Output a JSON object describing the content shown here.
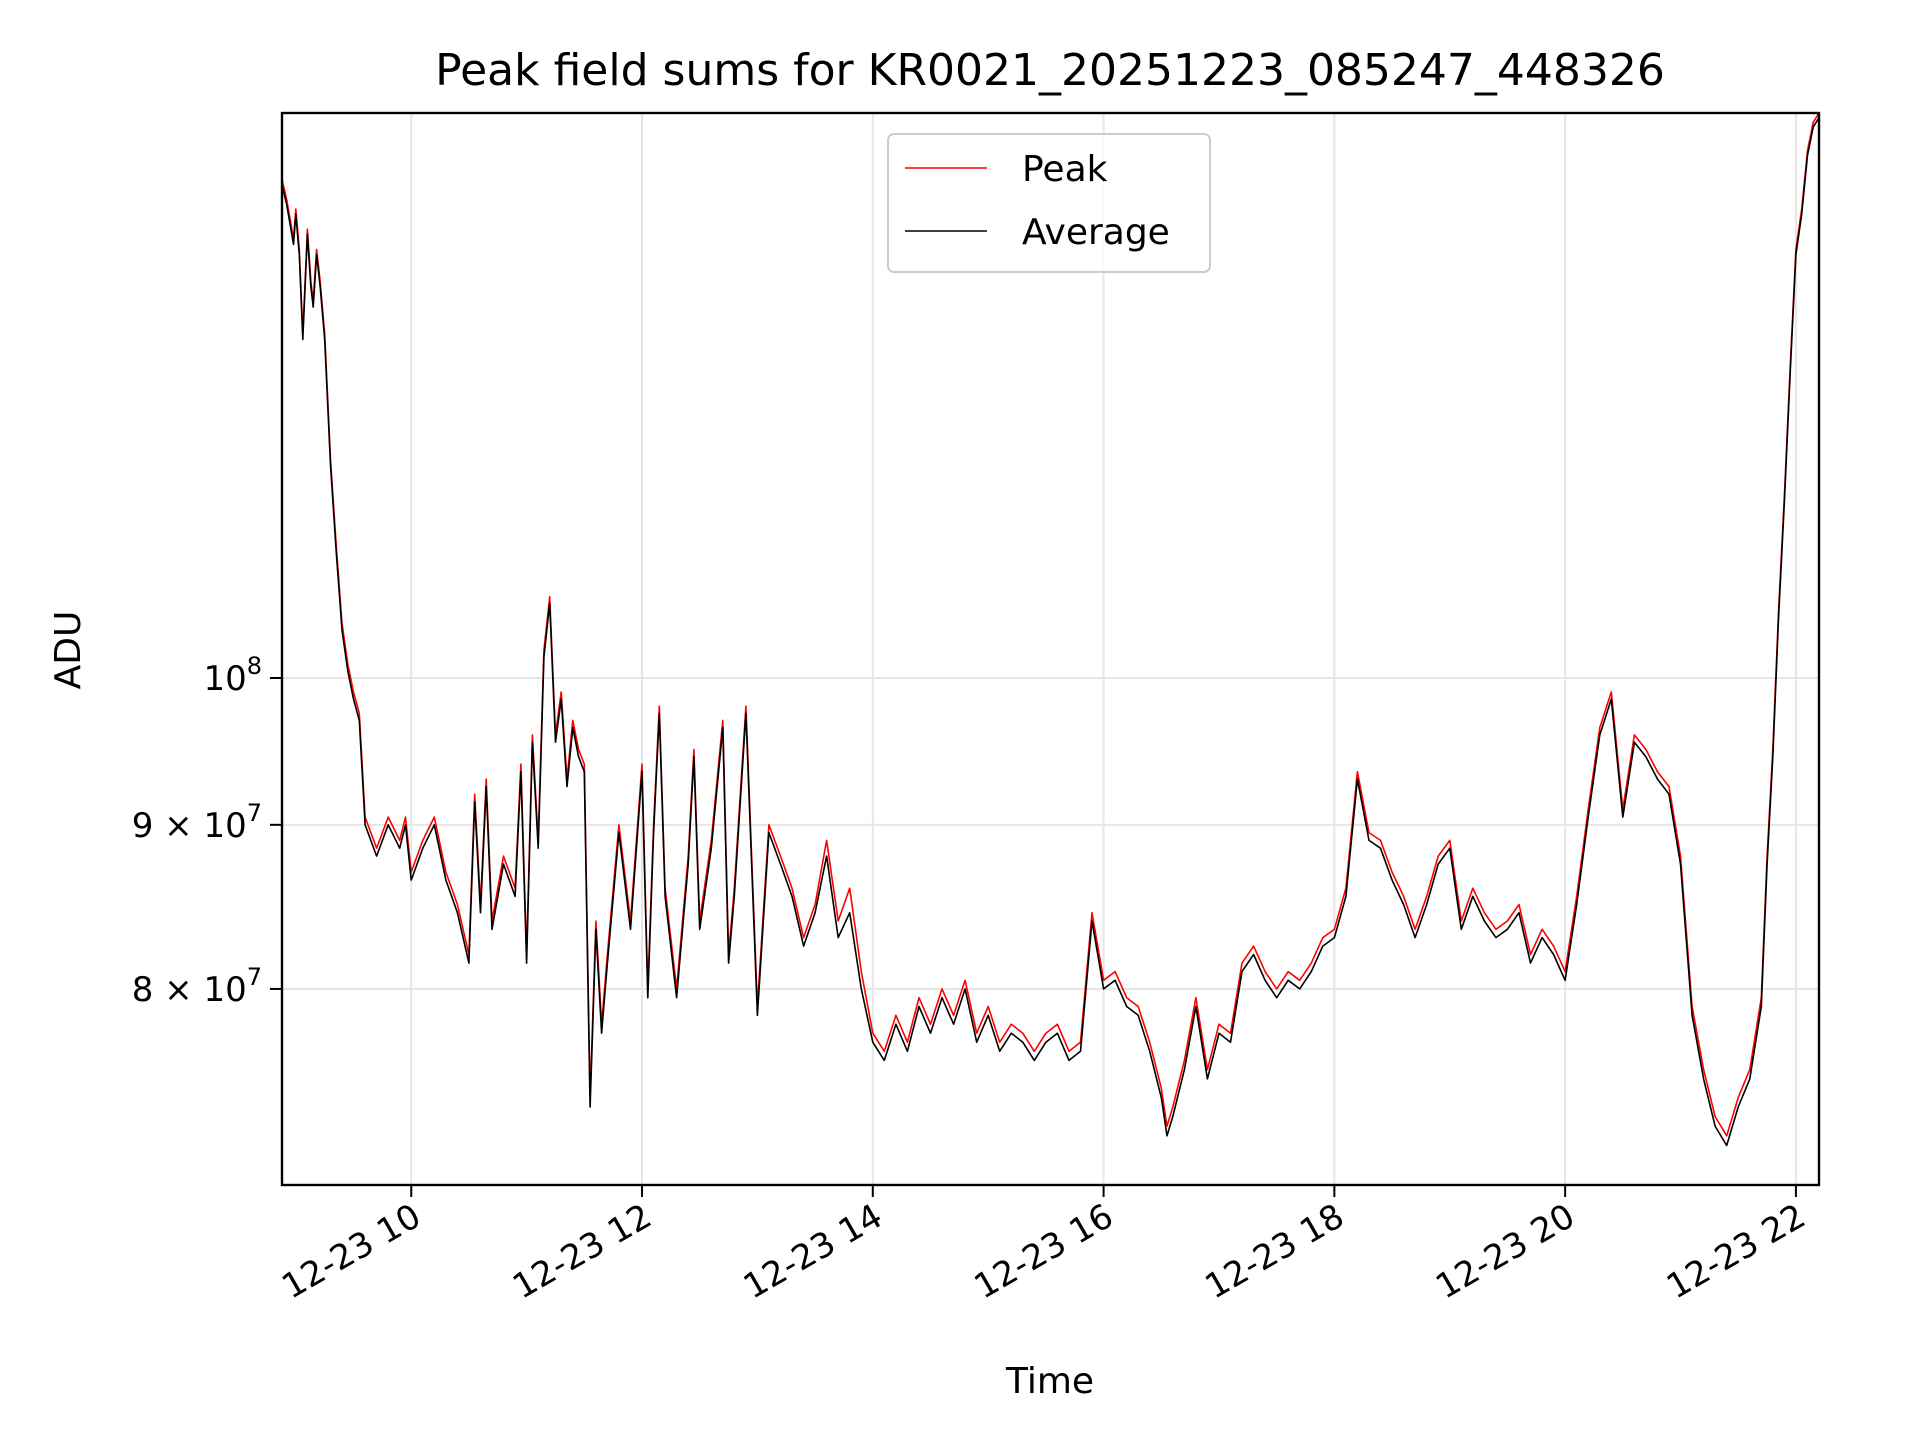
{
  "chart_data": {
    "type": "line",
    "title": "Peak field sums for KR0021_20251223_085247_448326",
    "xlabel": "Time",
    "ylabel": "ADU",
    "yscale": "log",
    "grid": true,
    "legend_position": "top-center",
    "xlim": [
      8.88,
      22.2
    ],
    "ylim": [
      69500000,
      150000000
    ],
    "x_units": "hours since 2025-12-23 00:00",
    "x_ticks": [
      {
        "value": 10,
        "label": "12-23 10"
      },
      {
        "value": 12,
        "label": "12-23 12"
      },
      {
        "value": 14,
        "label": "12-23 14"
      },
      {
        "value": 16,
        "label": "12-23 16"
      },
      {
        "value": 18,
        "label": "12-23 18"
      },
      {
        "value": 20,
        "label": "12-23 20"
      },
      {
        "value": 22,
        "label": "12-23 22"
      }
    ],
    "y_ticks": [
      {
        "value": 80000000,
        "label": "8 × 10",
        "exp": "7"
      },
      {
        "value": 90000000,
        "label": "9 × 10",
        "exp": "7"
      },
      {
        "value": 100000000,
        "label": "10",
        "exp": "8"
      }
    ],
    "series": [
      {
        "name": "Peak",
        "color": "#ff0000",
        "x": [
          8.88,
          8.92,
          8.95,
          8.98,
          9.0,
          9.03,
          9.06,
          9.1,
          9.13,
          9.15,
          9.18,
          9.21,
          9.25,
          9.3,
          9.35,
          9.4,
          9.45,
          9.5,
          9.55,
          9.6,
          9.7,
          9.8,
          9.9,
          9.95,
          10.0,
          10.1,
          10.2,
          10.3,
          10.4,
          10.5,
          10.55,
          10.6,
          10.65,
          10.7,
          10.8,
          10.9,
          10.95,
          11.0,
          11.05,
          11.1,
          11.15,
          11.2,
          11.25,
          11.3,
          11.35,
          11.4,
          11.45,
          11.5,
          11.55,
          11.6,
          11.65,
          11.7,
          11.8,
          11.9,
          12.0,
          12.05,
          12.1,
          12.15,
          12.2,
          12.3,
          12.4,
          12.45,
          12.5,
          12.6,
          12.7,
          12.75,
          12.8,
          12.9,
          13.0,
          13.1,
          13.2,
          13.3,
          13.4,
          13.5,
          13.6,
          13.7,
          13.8,
          13.9,
          14.0,
          14.1,
          14.2,
          14.3,
          14.4,
          14.5,
          14.6,
          14.7,
          14.8,
          14.9,
          15.0,
          15.1,
          15.2,
          15.3,
          15.4,
          15.5,
          15.6,
          15.7,
          15.8,
          15.9,
          16.0,
          16.1,
          16.2,
          16.3,
          16.4,
          16.5,
          16.55,
          16.6,
          16.7,
          16.8,
          16.9,
          17.0,
          17.1,
          17.2,
          17.3,
          17.4,
          17.5,
          17.6,
          17.7,
          17.8,
          17.9,
          18.0,
          18.1,
          18.2,
          18.3,
          18.4,
          18.5,
          18.6,
          18.7,
          18.8,
          18.9,
          19.0,
          19.1,
          19.2,
          19.3,
          19.4,
          19.5,
          19.6,
          19.7,
          19.8,
          19.9,
          20.0,
          20.1,
          20.2,
          20.3,
          20.4,
          20.5,
          20.6,
          20.7,
          20.8,
          20.9,
          21.0,
          21.1,
          21.2,
          21.3,
          21.4,
          21.5,
          21.6,
          21.7,
          21.75,
          21.8,
          21.85,
          21.9,
          21.95,
          22.0,
          22.05,
          22.1,
          22.15,
          22.2
        ],
        "y": [
          143000000,
          141000000,
          139000000,
          137000000,
          140000000,
          136000000,
          128000000,
          138000000,
          133000000,
          131000000,
          136000000,
          133000000,
          128000000,
          117000000,
          110000000,
          104000000,
          101000000,
          99000000,
          97500000,
          90500000,
          88500000,
          90500000,
          89000000,
          90500000,
          87000000,
          89000000,
          90500000,
          87000000,
          85000000,
          82000000,
          92000000,
          85000000,
          93000000,
          84000000,
          88000000,
          86000000,
          94000000,
          82000000,
          96000000,
          89000000,
          102000000,
          106000000,
          96000000,
          99000000,
          93000000,
          97000000,
          95000000,
          94000000,
          74000000,
          84000000,
          78000000,
          82000000,
          90000000,
          84000000,
          94000000,
          80000000,
          90000000,
          98000000,
          86000000,
          80000000,
          88000000,
          95000000,
          84000000,
          89000000,
          97000000,
          82000000,
          86000000,
          98000000,
          79000000,
          90000000,
          88000000,
          86000000,
          83000000,
          85000000,
          89000000,
          84000000,
          86000000,
          81000000,
          77500000,
          76500000,
          78500000,
          77000000,
          79500000,
          78000000,
          80000000,
          78500000,
          80500000,
          77500000,
          79000000,
          77000000,
          78000000,
          77500000,
          76500000,
          77500000,
          78000000,
          76500000,
          77000000,
          84500000,
          80500000,
          81000000,
          79500000,
          79000000,
          77000000,
          74500000,
          72500000,
          73500000,
          76000000,
          79500000,
          75500000,
          78000000,
          77500000,
          81500000,
          82500000,
          81000000,
          80000000,
          81000000,
          80500000,
          81500000,
          83000000,
          83500000,
          86000000,
          93500000,
          89500000,
          89000000,
          87000000,
          85500000,
          83500000,
          85500000,
          88000000,
          89000000,
          84000000,
          86000000,
          84500000,
          83500000,
          84000000,
          85000000,
          82000000,
          83500000,
          82500000,
          81000000,
          85500000,
          91000000,
          96500000,
          99000000,
          91000000,
          96000000,
          95000000,
          93500000,
          92500000,
          88000000,
          79000000,
          75500000,
          73000000,
          72000000,
          74000000,
          75500000,
          79500000,
          88000000,
          95000000,
          105000000,
          114000000,
          125000000,
          136000000,
          140000000,
          146000000,
          149000000,
          150000000
        ]
      },
      {
        "name": "Average",
        "color": "#000000",
        "x": [
          8.88,
          8.92,
          8.95,
          8.98,
          9.0,
          9.03,
          9.06,
          9.1,
          9.13,
          9.15,
          9.18,
          9.21,
          9.25,
          9.3,
          9.35,
          9.4,
          9.45,
          9.5,
          9.55,
          9.6,
          9.7,
          9.8,
          9.9,
          9.95,
          10.0,
          10.1,
          10.2,
          10.3,
          10.4,
          10.5,
          10.55,
          10.6,
          10.65,
          10.7,
          10.8,
          10.9,
          10.95,
          11.0,
          11.05,
          11.1,
          11.15,
          11.2,
          11.25,
          11.3,
          11.35,
          11.4,
          11.45,
          11.5,
          11.55,
          11.6,
          11.65,
          11.7,
          11.8,
          11.9,
          12.0,
          12.05,
          12.1,
          12.15,
          12.2,
          12.3,
          12.4,
          12.45,
          12.5,
          12.6,
          12.7,
          12.75,
          12.8,
          12.9,
          13.0,
          13.1,
          13.2,
          13.3,
          13.4,
          13.5,
          13.6,
          13.7,
          13.8,
          13.9,
          14.0,
          14.1,
          14.2,
          14.3,
          14.4,
          14.5,
          14.6,
          14.7,
          14.8,
          14.9,
          15.0,
          15.1,
          15.2,
          15.3,
          15.4,
          15.5,
          15.6,
          15.7,
          15.8,
          15.9,
          16.0,
          16.1,
          16.2,
          16.3,
          16.4,
          16.5,
          16.55,
          16.6,
          16.7,
          16.8,
          16.9,
          17.0,
          17.1,
          17.2,
          17.3,
          17.4,
          17.5,
          17.6,
          17.7,
          17.8,
          17.9,
          18.0,
          18.1,
          18.2,
          18.3,
          18.4,
          18.5,
          18.6,
          18.7,
          18.8,
          18.9,
          19.0,
          19.1,
          19.2,
          19.3,
          19.4,
          19.5,
          19.6,
          19.7,
          19.8,
          19.9,
          20.0,
          20.1,
          20.2,
          20.3,
          20.4,
          20.5,
          20.6,
          20.7,
          20.8,
          20.9,
          21.0,
          21.1,
          21.2,
          21.3,
          21.4,
          21.5,
          21.6,
          21.7,
          21.75,
          21.8,
          21.85,
          21.9,
          21.95,
          22.0,
          22.05,
          22.1,
          22.15,
          22.2
        ],
        "y": [
          142500000,
          140500000,
          138500000,
          136500000,
          139500000,
          135500000,
          127500000,
          137500000,
          132500000,
          130500000,
          135500000,
          132500000,
          127500000,
          116500000,
          109500000,
          103500000,
          100500000,
          98500000,
          97000000,
          90000000,
          88000000,
          90000000,
          88500000,
          90000000,
          86500000,
          88500000,
          90000000,
          86500000,
          84500000,
          81500000,
          91500000,
          84500000,
          92500000,
          83500000,
          87500000,
          85500000,
          93500000,
          81500000,
          95500000,
          88500000,
          101500000,
          105500000,
          95500000,
          98500000,
          92500000,
          96500000,
          94500000,
          93500000,
          73500000,
          83500000,
          77500000,
          81500000,
          89500000,
          83500000,
          93500000,
          79500000,
          89500000,
          97500000,
          85500000,
          79500000,
          87500000,
          94500000,
          83500000,
          88500000,
          96500000,
          81500000,
          85500000,
          97500000,
          78500000,
          89500000,
          87500000,
          85500000,
          82500000,
          84500000,
          88000000,
          83000000,
          84500000,
          80000000,
          77000000,
          76000000,
          78000000,
          76500000,
          79000000,
          77500000,
          79500000,
          78000000,
          80000000,
          77000000,
          78500000,
          76500000,
          77500000,
          77000000,
          76000000,
          77000000,
          77500000,
          76000000,
          76500000,
          84000000,
          80000000,
          80500000,
          79000000,
          78500000,
          76500000,
          74000000,
          72000000,
          73000000,
          75500000,
          79000000,
          75000000,
          77500000,
          77000000,
          81000000,
          82000000,
          80500000,
          79500000,
          80500000,
          80000000,
          81000000,
          82500000,
          83000000,
          85500000,
          93000000,
          89000000,
          88500000,
          86500000,
          85000000,
          83000000,
          85000000,
          87500000,
          88500000,
          83500000,
          85500000,
          84000000,
          83000000,
          83500000,
          84500000,
          81500000,
          83000000,
          82000000,
          80500000,
          85000000,
          90500000,
          96000000,
          98500000,
          90500000,
          95500000,
          94500000,
          93000000,
          92000000,
          87500000,
          78500000,
          75000000,
          72500000,
          71500000,
          73500000,
          75000000,
          79000000,
          87500000,
          94500000,
          104500000,
          113500000,
          124500000,
          135500000,
          139500000,
          145500000,
          148500000,
          149500000
        ]
      }
    ]
  }
}
